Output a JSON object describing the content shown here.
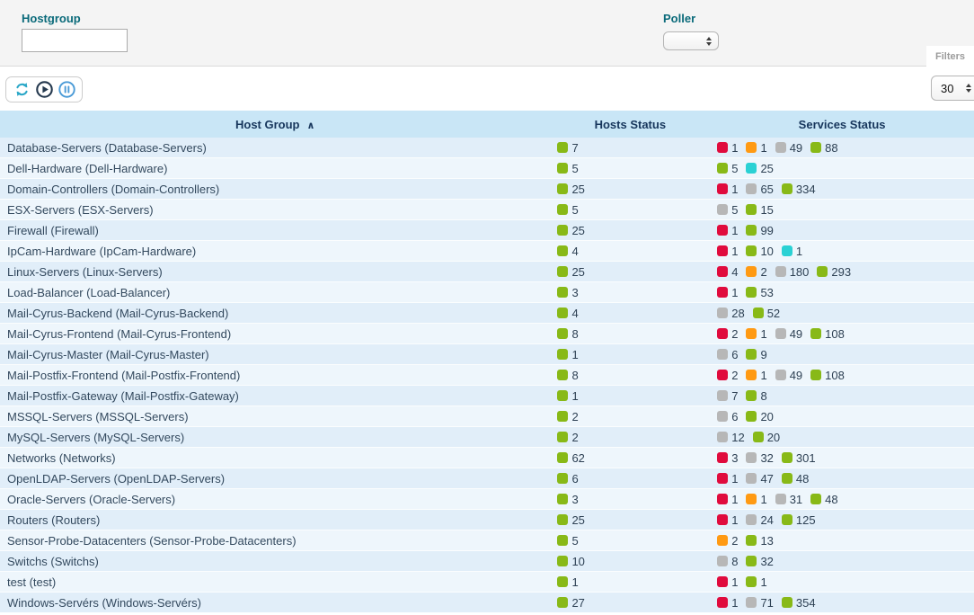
{
  "filters": {
    "hostgroup_label": "Hostgroup",
    "hostgroup_value": "",
    "poller_label": "Poller",
    "poller_value": "",
    "filters_tab_label": "Filters"
  },
  "toolbar": {
    "icons": [
      "refresh-icon",
      "play-icon",
      "pause-icon"
    ],
    "page_size": "30"
  },
  "table": {
    "headers": {
      "host_group": "Host Group",
      "hosts_status": "Hosts Status",
      "services_status": "Services Status"
    },
    "sort_indicator": "∧",
    "rows": [
      {
        "name": "Database-Servers (Database-Servers)",
        "hosts": [
          {
            "color": "green",
            "value": "7"
          }
        ],
        "services": [
          {
            "color": "red",
            "value": "1"
          },
          {
            "color": "orange",
            "value": "1"
          },
          {
            "color": "gray",
            "value": "49"
          },
          {
            "color": "green",
            "value": "88"
          }
        ]
      },
      {
        "name": "Dell-Hardware (Dell-Hardware)",
        "hosts": [
          {
            "color": "green",
            "value": "5"
          }
        ],
        "services": [
          {
            "color": "green",
            "value": "5"
          },
          {
            "color": "cyan",
            "value": "25"
          }
        ]
      },
      {
        "name": "Domain-Controllers (Domain-Controllers)",
        "hosts": [
          {
            "color": "green",
            "value": "25"
          }
        ],
        "services": [
          {
            "color": "red",
            "value": "1"
          },
          {
            "color": "gray",
            "value": "65"
          },
          {
            "color": "green",
            "value": "334"
          }
        ]
      },
      {
        "name": "ESX-Servers (ESX-Servers)",
        "hosts": [
          {
            "color": "green",
            "value": "5"
          }
        ],
        "services": [
          {
            "color": "gray",
            "value": "5"
          },
          {
            "color": "green",
            "value": "15"
          }
        ]
      },
      {
        "name": "Firewall (Firewall)",
        "hosts": [
          {
            "color": "green",
            "value": "25"
          }
        ],
        "services": [
          {
            "color": "red",
            "value": "1"
          },
          {
            "color": "green",
            "value": "99"
          }
        ]
      },
      {
        "name": "IpCam-Hardware (IpCam-Hardware)",
        "hosts": [
          {
            "color": "green",
            "value": "4"
          }
        ],
        "services": [
          {
            "color": "red",
            "value": "1"
          },
          {
            "color": "green",
            "value": "10"
          },
          {
            "color": "cyan",
            "value": "1"
          }
        ]
      },
      {
        "name": "Linux-Servers (Linux-Servers)",
        "hosts": [
          {
            "color": "green",
            "value": "25"
          }
        ],
        "services": [
          {
            "color": "red",
            "value": "4"
          },
          {
            "color": "orange",
            "value": "2"
          },
          {
            "color": "gray",
            "value": "180"
          },
          {
            "color": "green",
            "value": "293"
          }
        ]
      },
      {
        "name": "Load-Balancer (Load-Balancer)",
        "hosts": [
          {
            "color": "green",
            "value": "3"
          }
        ],
        "services": [
          {
            "color": "red",
            "value": "1"
          },
          {
            "color": "green",
            "value": "53"
          }
        ]
      },
      {
        "name": "Mail-Cyrus-Backend (Mail-Cyrus-Backend)",
        "hosts": [
          {
            "color": "green",
            "value": "4"
          }
        ],
        "services": [
          {
            "color": "gray",
            "value": "28"
          },
          {
            "color": "green",
            "value": "52"
          }
        ]
      },
      {
        "name": "Mail-Cyrus-Frontend (Mail-Cyrus-Frontend)",
        "hosts": [
          {
            "color": "green",
            "value": "8"
          }
        ],
        "services": [
          {
            "color": "red",
            "value": "2"
          },
          {
            "color": "orange",
            "value": "1"
          },
          {
            "color": "gray",
            "value": "49"
          },
          {
            "color": "green",
            "value": "108"
          }
        ]
      },
      {
        "name": "Mail-Cyrus-Master (Mail-Cyrus-Master)",
        "hosts": [
          {
            "color": "green",
            "value": "1"
          }
        ],
        "services": [
          {
            "color": "gray",
            "value": "6"
          },
          {
            "color": "green",
            "value": "9"
          }
        ]
      },
      {
        "name": "Mail-Postfix-Frontend (Mail-Postfix-Frontend)",
        "hosts": [
          {
            "color": "green",
            "value": "8"
          }
        ],
        "services": [
          {
            "color": "red",
            "value": "2"
          },
          {
            "color": "orange",
            "value": "1"
          },
          {
            "color": "gray",
            "value": "49"
          },
          {
            "color": "green",
            "value": "108"
          }
        ]
      },
      {
        "name": "Mail-Postfix-Gateway (Mail-Postfix-Gateway)",
        "hosts": [
          {
            "color": "green",
            "value": "1"
          }
        ],
        "services": [
          {
            "color": "gray",
            "value": "7"
          },
          {
            "color": "green",
            "value": "8"
          }
        ]
      },
      {
        "name": "MSSQL-Servers (MSSQL-Servers)",
        "hosts": [
          {
            "color": "green",
            "value": "2"
          }
        ],
        "services": [
          {
            "color": "gray",
            "value": "6"
          },
          {
            "color": "green",
            "value": "20"
          }
        ]
      },
      {
        "name": "MySQL-Servers (MySQL-Servers)",
        "hosts": [
          {
            "color": "green",
            "value": "2"
          }
        ],
        "services": [
          {
            "color": "gray",
            "value": "12"
          },
          {
            "color": "green",
            "value": "20"
          }
        ]
      },
      {
        "name": "Networks (Networks)",
        "hosts": [
          {
            "color": "green",
            "value": "62"
          }
        ],
        "services": [
          {
            "color": "red",
            "value": "3"
          },
          {
            "color": "gray",
            "value": "32"
          },
          {
            "color": "green",
            "value": "301"
          }
        ]
      },
      {
        "name": "OpenLDAP-Servers (OpenLDAP-Servers)",
        "hosts": [
          {
            "color": "green",
            "value": "6"
          }
        ],
        "services": [
          {
            "color": "red",
            "value": "1"
          },
          {
            "color": "gray",
            "value": "47"
          },
          {
            "color": "green",
            "value": "48"
          }
        ]
      },
      {
        "name": "Oracle-Servers (Oracle-Servers)",
        "hosts": [
          {
            "color": "green",
            "value": "3"
          }
        ],
        "services": [
          {
            "color": "red",
            "value": "1"
          },
          {
            "color": "orange",
            "value": "1"
          },
          {
            "color": "gray",
            "value": "31"
          },
          {
            "color": "green",
            "value": "48"
          }
        ]
      },
      {
        "name": "Routers (Routers)",
        "hosts": [
          {
            "color": "green",
            "value": "25"
          }
        ],
        "services": [
          {
            "color": "red",
            "value": "1"
          },
          {
            "color": "gray",
            "value": "24"
          },
          {
            "color": "green",
            "value": "125"
          }
        ]
      },
      {
        "name": "Sensor-Probe-Datacenters (Sensor-Probe-Datacenters)",
        "hosts": [
          {
            "color": "green",
            "value": "5"
          }
        ],
        "services": [
          {
            "color": "orange",
            "value": "2"
          },
          {
            "color": "green",
            "value": "13"
          }
        ]
      },
      {
        "name": "Switchs (Switchs)",
        "hosts": [
          {
            "color": "green",
            "value": "10"
          }
        ],
        "services": [
          {
            "color": "gray",
            "value": "8"
          },
          {
            "color": "green",
            "value": "32"
          }
        ]
      },
      {
        "name": "test (test)",
        "hosts": [
          {
            "color": "green",
            "value": "1"
          }
        ],
        "services": [
          {
            "color": "red",
            "value": "1"
          },
          {
            "color": "green",
            "value": "1"
          }
        ]
      },
      {
        "name": "Windows-Servérs (Windows-Servérs)",
        "hosts": [
          {
            "color": "green",
            "value": "27"
          }
        ],
        "services": [
          {
            "color": "red",
            "value": "1"
          },
          {
            "color": "gray",
            "value": "71"
          },
          {
            "color": "green",
            "value": "354"
          }
        ]
      }
    ]
  },
  "status_colors": {
    "green": "#88b917",
    "red": "#e00b3d",
    "orange": "#ff9a13",
    "gray": "#b7b7b7",
    "cyan": "#2ad1d4"
  }
}
